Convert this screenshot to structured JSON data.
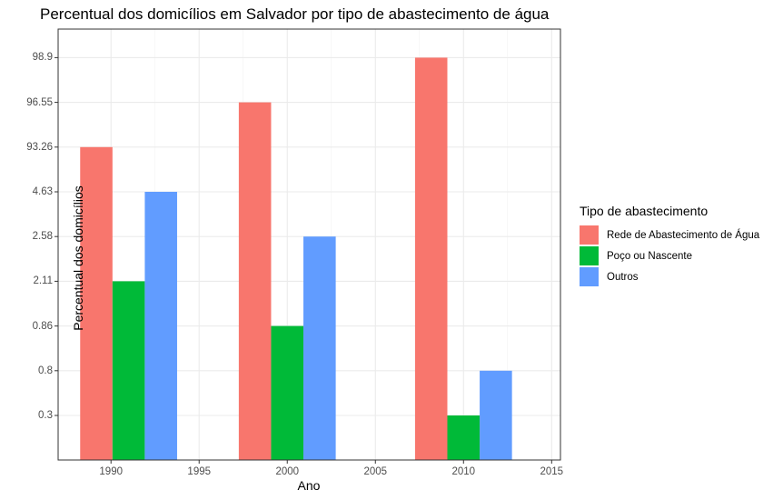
{
  "chart_data": {
    "type": "bar",
    "title": "Percentual dos domicílios em Salvador por tipo de abastecimento de água",
    "xlabel": "Ano",
    "ylabel": "Percentual dos domicílios",
    "x_ticks": [
      1990,
      1995,
      2000,
      2005,
      2010,
      2015
    ],
    "xlim": [
      1987,
      2015.5
    ],
    "y_scale": "discrete",
    "y_categories": [
      "0.3",
      "0.8",
      "0.86",
      "2.11",
      "2.58",
      "4.63",
      "93.26",
      "96.55",
      "98.9"
    ],
    "categories": [
      "1991",
      "2000",
      "2010"
    ],
    "bar_centers": [
      1991,
      2000,
      2010
    ],
    "series": [
      {
        "name": "Rede de Abastecimento de Água",
        "color": "#F8766D",
        "values": [
          93.26,
          96.55,
          98.9
        ]
      },
      {
        "name": "Poço ou Nascente",
        "color": "#00BA38",
        "values": [
          2.11,
          0.86,
          0.3
        ]
      },
      {
        "name": "Outros",
        "color": "#619CFF",
        "values": [
          4.63,
          2.58,
          0.8
        ]
      }
    ],
    "grid": true,
    "legend": {
      "title": "Tipo de abastecimento",
      "position": "right"
    }
  }
}
